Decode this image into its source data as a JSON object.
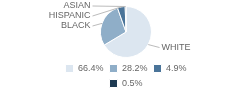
{
  "chart_data": {
    "type": "pie",
    "categories": [
      "WHITE",
      "BLACK",
      "HISPANIC",
      "ASIAN"
    ],
    "values": [
      66.4,
      28.2,
      4.9,
      0.5
    ],
    "value_labels": [
      "66.4%",
      "28.2%",
      "4.9%",
      "0.5%"
    ],
    "colors": [
      "#dce6f0",
      "#8faec8",
      "#4a7499",
      "#1e3a52"
    ],
    "legend": "bottom"
  }
}
